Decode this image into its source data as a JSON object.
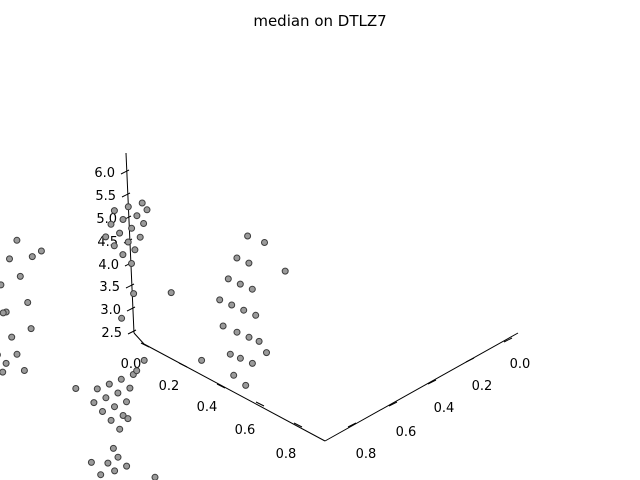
{
  "chart_data": {
    "type": "scatter",
    "title": "median on DTLZ7",
    "xlabel": "",
    "ylabel": "",
    "zlabel": "",
    "xlim": [
      0.0,
      0.9
    ],
    "ylim": [
      0.0,
      0.9
    ],
    "zlim": [
      2.5,
      6.1
    ],
    "x_ticks": [
      "0.0",
      "0.2",
      "0.4",
      "0.6",
      "0.8"
    ],
    "y_ticks": [
      "0.0",
      "0.2",
      "0.4",
      "0.6",
      "0.8"
    ],
    "z_ticks": [
      "2.5",
      "3.0",
      "3.5",
      "4.0",
      "4.5",
      "5.0",
      "5.5",
      "6.0"
    ],
    "grid": false,
    "marker_color": "#9a9a9a",
    "marker_edge_color": "#3c3c3c",
    "clusters": [
      {
        "x_range": [
          0.0,
          0.25
        ],
        "y_range": [
          0.6,
          0.85
        ],
        "z_range": [
          3.5,
          6.0
        ],
        "points": [
          [
            0.03,
            0.62,
            5.3
          ],
          [
            0.08,
            0.63,
            5.8
          ],
          [
            0.12,
            0.65,
            5.2
          ],
          [
            0.17,
            0.66,
            4.8
          ],
          [
            0.21,
            0.68,
            4.4
          ],
          [
            0.04,
            0.67,
            4.9
          ],
          [
            0.09,
            0.69,
            4.5
          ],
          [
            0.13,
            0.7,
            4.1
          ],
          [
            0.18,
            0.72,
            3.9
          ],
          [
            0.23,
            0.73,
            3.7
          ],
          [
            0.02,
            0.72,
            4.6
          ],
          [
            0.07,
            0.74,
            4.2
          ],
          [
            0.11,
            0.75,
            3.8
          ],
          [
            0.16,
            0.77,
            3.6
          ],
          [
            0.2,
            0.79,
            3.9
          ],
          [
            0.05,
            0.78,
            4.0
          ],
          [
            0.1,
            0.8,
            5.7
          ],
          [
            0.14,
            0.81,
            5.0
          ],
          [
            0.19,
            0.83,
            4.3
          ],
          [
            0.24,
            0.84,
            5.1
          ],
          [
            0.01,
            0.82,
            5.5
          ],
          [
            0.06,
            0.84,
            4.7
          ],
          [
            0.15,
            0.62,
            5.6
          ],
          [
            0.22,
            0.64,
            5.9
          ],
          [
            0.03,
            0.76,
            3.5
          ]
        ]
      },
      {
        "x_range": [
          0.0,
          0.25
        ],
        "y_range": [
          0.0,
          0.25
        ],
        "z_range": [
          3.5,
          6.0
        ],
        "points": [
          [
            0.02,
            0.03,
            4.0
          ],
          [
            0.06,
            0.05,
            4.4
          ],
          [
            0.11,
            0.07,
            4.8
          ],
          [
            0.15,
            0.09,
            5.2
          ],
          [
            0.19,
            0.11,
            5.6
          ],
          [
            0.03,
            0.08,
            4.3
          ],
          [
            0.08,
            0.1,
            4.7
          ],
          [
            0.12,
            0.12,
            5.1
          ],
          [
            0.17,
            0.14,
            5.5
          ],
          [
            0.22,
            0.16,
            5.9
          ],
          [
            0.04,
            0.13,
            4.6
          ],
          [
            0.09,
            0.15,
            5.0
          ],
          [
            0.13,
            0.17,
            5.4
          ],
          [
            0.18,
            0.19,
            5.8
          ],
          [
            0.23,
            0.21,
            4.2
          ],
          [
            0.05,
            0.18,
            4.9
          ],
          [
            0.1,
            0.2,
            5.3
          ],
          [
            0.14,
            0.22,
            5.7
          ],
          [
            0.2,
            0.24,
            3.7
          ],
          [
            0.24,
            0.04,
            3.9
          ]
        ]
      },
      {
        "x_range": [
          0.6,
          0.85
        ],
        "y_range": [
          0.0,
          0.25
        ],
        "z_range": [
          3.5,
          6.0
        ],
        "points": [
          [
            0.62,
            0.02,
            5.8
          ],
          [
            0.66,
            0.05,
            5.4
          ],
          [
            0.7,
            0.07,
            5.0
          ],
          [
            0.74,
            0.09,
            4.6
          ],
          [
            0.78,
            0.11,
            4.2
          ],
          [
            0.63,
            0.08,
            5.5
          ],
          [
            0.67,
            0.1,
            5.1
          ],
          [
            0.71,
            0.12,
            4.7
          ],
          [
            0.76,
            0.14,
            4.3
          ],
          [
            0.8,
            0.16,
            3.9
          ],
          [
            0.64,
            0.13,
            5.2
          ],
          [
            0.68,
            0.15,
            4.8
          ],
          [
            0.73,
            0.17,
            4.4
          ],
          [
            0.77,
            0.19,
            4.0
          ],
          [
            0.82,
            0.21,
            3.6
          ],
          [
            0.65,
            0.18,
            4.9
          ],
          [
            0.69,
            0.2,
            4.5
          ],
          [
            0.75,
            0.22,
            4.1
          ],
          [
            0.79,
            0.24,
            3.8
          ],
          [
            0.84,
            0.04,
            5.6
          ],
          [
            0.61,
            0.23,
            3.7
          ],
          [
            0.72,
            0.03,
            5.9
          ],
          [
            0.83,
            0.12,
            4.1
          ]
        ]
      },
      {
        "x_range": [
          0.6,
          0.85
        ],
        "y_range": [
          0.6,
          0.85
        ],
        "z_range": [
          2.5,
          5.0
        ],
        "points": [
          [
            0.61,
            0.62,
            3.1
          ],
          [
            0.65,
            0.64,
            3.5
          ],
          [
            0.69,
            0.66,
            3.9
          ],
          [
            0.73,
            0.68,
            4.3
          ],
          [
            0.77,
            0.7,
            4.7
          ],
          [
            0.62,
            0.67,
            3.4
          ],
          [
            0.66,
            0.69,
            3.8
          ],
          [
            0.7,
            0.71,
            4.2
          ],
          [
            0.74,
            0.73,
            4.6
          ],
          [
            0.79,
            0.75,
            3.0
          ],
          [
            0.63,
            0.72,
            3.7
          ],
          [
            0.67,
            0.74,
            4.1
          ],
          [
            0.71,
            0.76,
            4.5
          ],
          [
            0.76,
            0.78,
            2.9
          ],
          [
            0.8,
            0.8,
            3.3
          ],
          [
            0.64,
            0.77,
            4.0
          ],
          [
            0.68,
            0.79,
            4.4
          ],
          [
            0.72,
            0.81,
            2.8
          ],
          [
            0.78,
            0.83,
            3.2
          ],
          [
            0.82,
            0.84,
            3.6
          ],
          [
            0.6,
            0.82,
            4.3
          ],
          [
            0.75,
            0.63,
            4.8
          ],
          [
            0.84,
            0.66,
            2.7
          ],
          [
            0.83,
            0.78,
            4.1
          ],
          [
            0.7,
            0.84,
            2.6
          ],
          [
            0.81,
            0.72,
            4.9
          ],
          [
            0.66,
            0.8,
            2.9
          ]
        ]
      }
    ]
  }
}
